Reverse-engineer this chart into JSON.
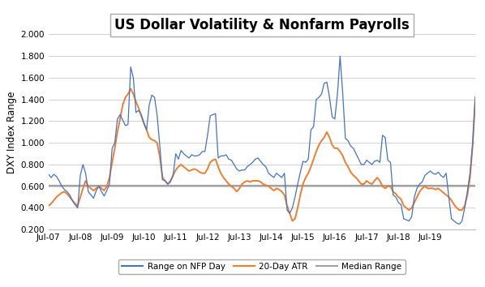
{
  "title": "US Dollar Volatility & Nonfarm Payrolls",
  "ylabel": "DXY Index Range",
  "ylim": [
    0.2,
    2.0
  ],
  "yticks": [
    0.2,
    0.4,
    0.6,
    0.8,
    1.0,
    1.2,
    1.4,
    1.6,
    1.8,
    2.0
  ],
  "median_range": 0.605,
  "line_color_nfp": "#4472C4",
  "line_color_atr": "#ED7D31",
  "line_color_median": "#A0A0A0",
  "x_labels": [
    "Jul-07",
    "Jul-08",
    "Jul-09",
    "Jul-10",
    "Jul-11",
    "Jul-12",
    "Jul-13",
    "Jul-14",
    "Jul-15",
    "Jul-16",
    "Jul-17",
    "Jul-18",
    "Jul-19"
  ],
  "nfp": [
    0.71,
    0.68,
    0.71,
    0.69,
    0.65,
    0.6,
    0.57,
    0.55,
    0.52,
    0.47,
    0.43,
    0.4,
    0.7,
    0.8,
    0.72,
    0.55,
    0.52,
    0.49,
    0.56,
    0.6,
    0.55,
    0.51,
    0.56,
    0.62,
    0.95,
    1.0,
    1.22,
    1.26,
    1.21,
    1.16,
    1.17,
    1.7,
    1.6,
    1.28,
    1.3,
    1.26,
    1.18,
    1.12,
    1.35,
    1.44,
    1.42,
    1.25,
    0.97,
    0.66,
    0.65,
    0.62,
    0.64,
    0.7,
    0.9,
    0.85,
    0.93,
    0.9,
    0.88,
    0.86,
    0.89,
    0.88,
    0.88,
    0.89,
    0.92,
    0.92,
    1.07,
    1.25,
    1.26,
    1.27,
    0.86,
    0.88,
    0.88,
    0.89,
    0.85,
    0.84,
    0.8,
    0.76,
    0.74,
    0.75,
    0.75,
    0.78,
    0.8,
    0.82,
    0.85,
    0.86,
    0.83,
    0.8,
    0.78,
    0.72,
    0.7,
    0.68,
    0.72,
    0.7,
    0.68,
    0.72,
    0.38,
    0.35,
    0.4,
    0.5,
    0.62,
    0.73,
    0.83,
    0.82,
    0.85,
    1.12,
    1.15,
    1.4,
    1.42,
    1.45,
    1.55,
    1.56,
    1.42,
    1.24,
    1.22,
    1.45,
    1.8,
    1.45,
    1.04,
    1.02,
    0.97,
    0.95,
    0.9,
    0.85,
    0.8,
    0.8,
    0.84,
    0.82,
    0.8,
    0.83,
    0.84,
    0.82,
    1.07,
    1.05,
    0.84,
    0.82,
    0.52,
    0.5,
    0.45,
    0.43,
    0.3,
    0.29,
    0.28,
    0.32,
    0.5,
    0.58,
    0.62,
    0.64,
    0.7,
    0.72,
    0.74,
    0.72,
    0.71,
    0.73,
    0.7,
    0.68,
    0.72,
    0.5,
    0.3,
    0.28,
    0.26,
    0.25,
    0.28,
    0.4,
    0.55,
    0.72,
    0.99,
    1.42
  ],
  "atr": [
    0.42,
    0.44,
    0.47,
    0.5,
    0.52,
    0.54,
    0.55,
    0.53,
    0.5,
    0.47,
    0.44,
    0.42,
    0.5,
    0.58,
    0.65,
    0.6,
    0.58,
    0.56,
    0.58,
    0.6,
    0.58,
    0.56,
    0.6,
    0.68,
    0.82,
    0.95,
    1.1,
    1.22,
    1.35,
    1.42,
    1.45,
    1.5,
    1.45,
    1.38,
    1.32,
    1.25,
    1.18,
    1.12,
    1.05,
    1.03,
    1.02,
    1.0,
    0.87,
    0.68,
    0.65,
    0.62,
    0.65,
    0.7,
    0.75,
    0.78,
    0.8,
    0.78,
    0.76,
    0.74,
    0.75,
    0.76,
    0.75,
    0.73,
    0.72,
    0.72,
    0.76,
    0.82,
    0.84,
    0.85,
    0.78,
    0.72,
    0.68,
    0.65,
    0.62,
    0.6,
    0.58,
    0.55,
    0.58,
    0.62,
    0.64,
    0.65,
    0.64,
    0.65,
    0.65,
    0.65,
    0.64,
    0.62,
    0.61,
    0.6,
    0.58,
    0.56,
    0.58,
    0.57,
    0.55,
    0.52,
    0.42,
    0.35,
    0.28,
    0.3,
    0.4,
    0.52,
    0.62,
    0.68,
    0.72,
    0.78,
    0.85,
    0.92,
    0.98,
    1.02,
    1.05,
    1.1,
    1.05,
    0.98,
    0.95,
    0.95,
    0.92,
    0.88,
    0.82,
    0.78,
    0.73,
    0.7,
    0.68,
    0.65,
    0.62,
    0.62,
    0.65,
    0.63,
    0.62,
    0.65,
    0.68,
    0.65,
    0.6,
    0.58,
    0.6,
    0.6,
    0.55,
    0.53,
    0.5,
    0.48,
    0.42,
    0.4,
    0.38,
    0.4,
    0.45,
    0.5,
    0.55,
    0.58,
    0.6,
    0.58,
    0.58,
    0.58,
    0.57,
    0.58,
    0.56,
    0.54,
    0.52,
    0.5,
    0.47,
    0.43,
    0.4,
    0.38,
    0.38,
    0.42,
    0.52,
    0.68,
    0.98,
    1.42
  ]
}
